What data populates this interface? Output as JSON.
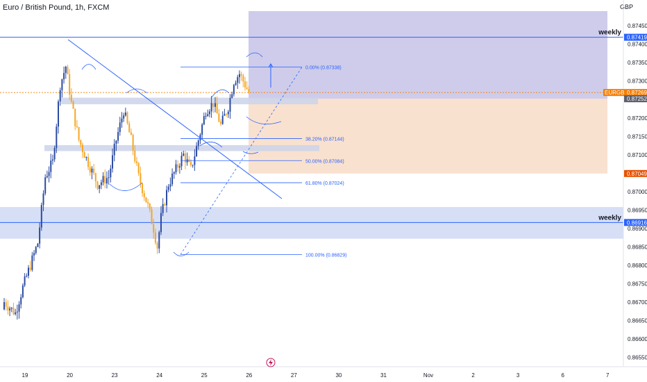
{
  "header": {
    "title": "Euro / British Pound, 1h, FXCM",
    "currency": "GBP"
  },
  "chart_data": {
    "type": "candlestick",
    "title": "Euro / British Pound, 1h, FXCM",
    "symbol": "EURGBP",
    "countdown": "26:03",
    "y_axis": {
      "unit": "GBP",
      "range": [
        0.8653,
        0.8749
      ],
      "ticks": [
        "0.87450",
        "0.87400",
        "0.87350",
        "0.87300",
        "0.87250",
        "0.87200",
        "0.87150",
        "0.87100",
        "0.87050",
        "0.87000",
        "0.86950",
        "0.86900",
        "0.86850",
        "0.86800",
        "0.86750",
        "0.86700",
        "0.86650",
        "0.86600",
        "0.86550"
      ]
    },
    "x_axis": {
      "ticks": [
        {
          "label": "19",
          "idx": 0
        },
        {
          "label": "20",
          "idx": 24
        },
        {
          "label": "23",
          "idx": 48
        },
        {
          "label": "24",
          "idx": 72
        },
        {
          "label": "25",
          "idx": 96
        },
        {
          "label": "26",
          "idx": 120
        },
        {
          "label": "27",
          "idx": 144
        },
        {
          "label": "30",
          "idx": 168
        },
        {
          "label": "31",
          "idx": 192
        },
        {
          "label": "Nov",
          "idx": 216
        },
        {
          "label": "2",
          "idx": 240
        },
        {
          "label": "3",
          "idx": 264
        },
        {
          "label": "6",
          "idx": 288
        },
        {
          "label": "7",
          "idx": 312
        }
      ]
    },
    "candle_count": 132,
    "anchors": [
      [
        0,
        0.867
      ],
      [
        6,
        0.8667
      ],
      [
        10,
        0.8674
      ],
      [
        18,
        0.8686
      ],
      [
        22,
        0.8704
      ],
      [
        26,
        0.8708
      ],
      [
        30,
        0.8729
      ],
      [
        33,
        0.8734
      ],
      [
        36,
        0.8724
      ],
      [
        40,
        0.8714
      ],
      [
        44,
        0.8709
      ],
      [
        50,
        0.8702
      ],
      [
        56,
        0.8704
      ],
      [
        60,
        0.8714
      ],
      [
        64,
        0.8722
      ],
      [
        68,
        0.8714
      ],
      [
        72,
        0.8704
      ],
      [
        77,
        0.8696
      ],
      [
        80,
        0.869
      ],
      [
        82,
        0.8685
      ],
      [
        84,
        0.8693
      ],
      [
        88,
        0.8702
      ],
      [
        92,
        0.8706
      ],
      [
        96,
        0.871
      ],
      [
        100,
        0.8706
      ],
      [
        104,
        0.8714
      ],
      [
        108,
        0.8722
      ],
      [
        112,
        0.8724
      ],
      [
        116,
        0.8718
      ],
      [
        120,
        0.8723
      ],
      [
        123,
        0.873
      ],
      [
        126,
        0.8732
      ],
      [
        128,
        0.873
      ],
      [
        131,
        0.8727
      ]
    ],
    "weekly_levels": [
      {
        "label": "weekly",
        "price": 0.87419,
        "price_text": "0.87419"
      },
      {
        "label": "weekly",
        "price": 0.86916,
        "price_text": "0.86916"
      }
    ],
    "fibonacci": [
      {
        "text": "0.00% (0.87338)",
        "price": 0.87338
      },
      {
        "text": "38.20% (0.87144)",
        "price": 0.87144
      },
      {
        "text": "50.00% (0.87084)",
        "price": 0.87084
      },
      {
        "text": "61.80% (0.87024)",
        "price": 0.87024
      },
      {
        "text": "100.00% (0.86829)",
        "price": 0.86829
      }
    ],
    "price_tags": [
      {
        "text": "0.87269",
        "price": 0.87269,
        "color": "#f57c00",
        "subtext": "26:03",
        "symbol": "EURGBP"
      },
      {
        "text": "0.87252",
        "price": 0.87252,
        "color": "#5d606b"
      },
      {
        "text": "0.87049",
        "price": 0.87049,
        "color": "#e65100"
      }
    ],
    "position": {
      "entry": 0.87252,
      "target_top": 0.8749,
      "stop": 0.87049,
      "profit_color": "#b3b0df",
      "loss_color": "#f7d9c4"
    },
    "zones": [
      {
        "kind": "weekly-band",
        "top": 0.86958,
        "bottom": 0.86872,
        "color": "#cfd9f3"
      },
      {
        "kind": "supply",
        "top": 0.87255,
        "bottom": 0.87237,
        "color": "#cbd3ea"
      },
      {
        "kind": "demand",
        "top": 0.87126,
        "bottom": 0.8711,
        "color": "#cbd3ea"
      }
    ],
    "colors": {
      "up": "#2b4aa0",
      "down": "#f5a623",
      "accent": "#2962ff"
    },
    "grid": false
  }
}
